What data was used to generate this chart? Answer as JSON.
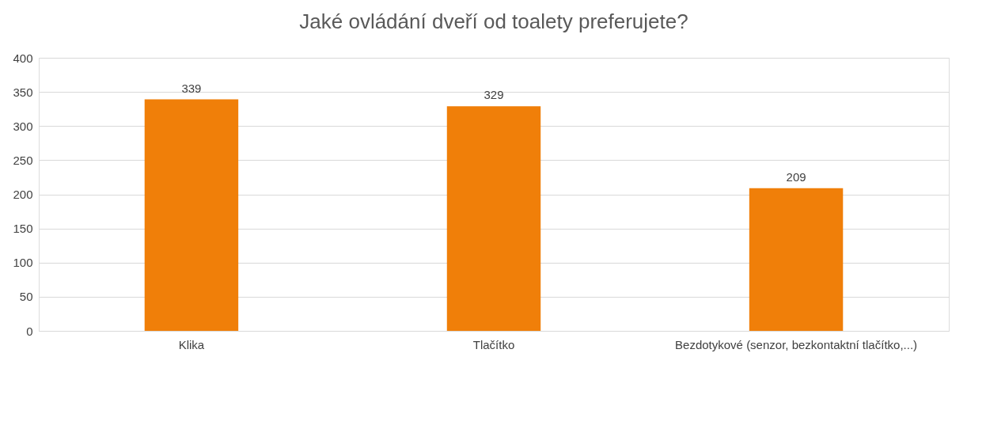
{
  "chart_data": {
    "type": "bar",
    "title": "Jaké ovládání dveří od toalety preferujete?",
    "categories": [
      "Klika",
      "Tlačítko",
      "Bezdotykové (senzor, bezkontaktní tlačítko,...)"
    ],
    "values": [
      339,
      329,
      209
    ],
    "color": "#f07f09",
    "ylim": [
      0,
      400
    ],
    "yticks": [
      0,
      50,
      100,
      150,
      200,
      250,
      300,
      350,
      400
    ],
    "grid": "y",
    "data_labels": true
  }
}
